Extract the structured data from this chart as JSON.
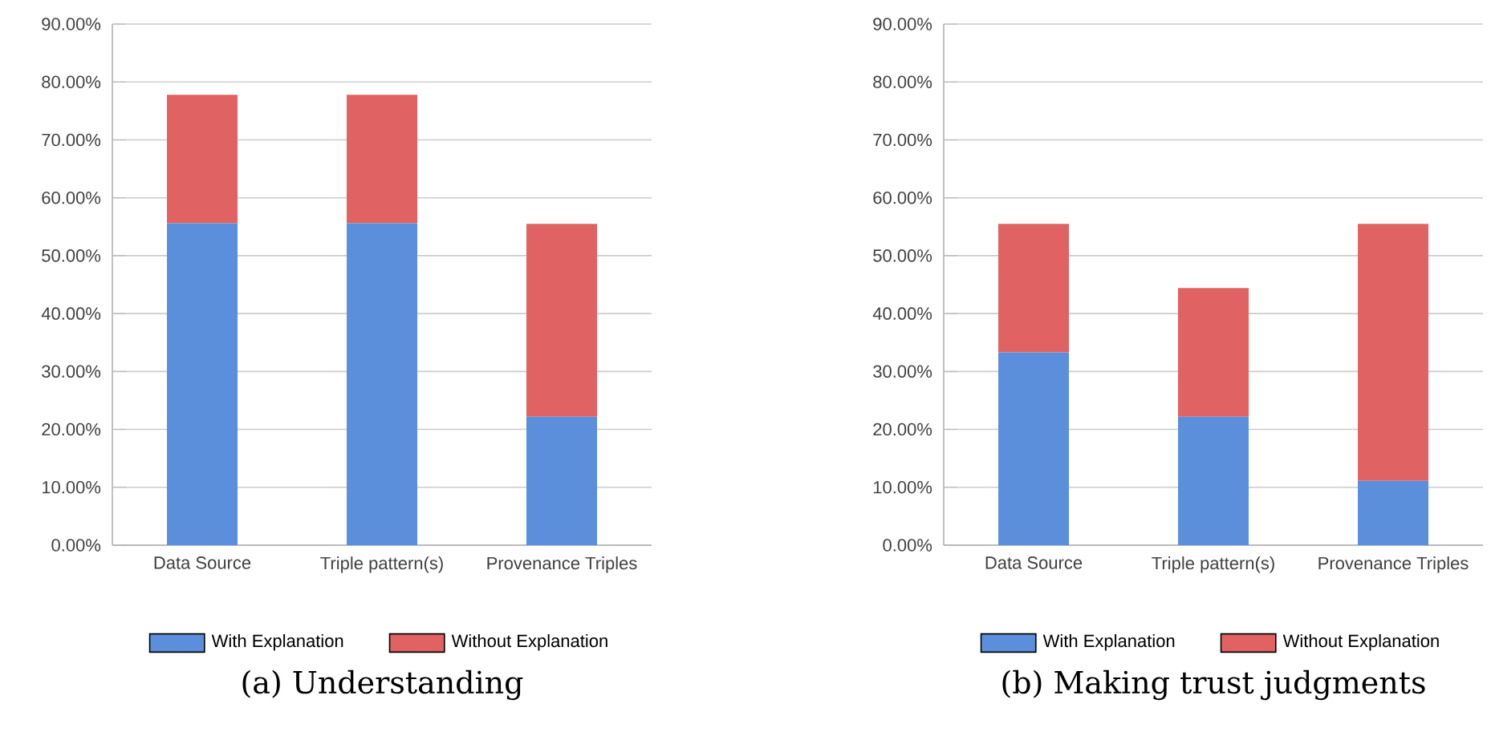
{
  "chart_data": [
    {
      "type": "bar",
      "stacked": true,
      "title": "(a) Understanding",
      "categories": [
        "Data Source",
        "Triple pattern(s)",
        "Provenance Triples"
      ],
      "series": [
        {
          "name": "With Explanation",
          "color": "#5b8fdc",
          "values": [
            55.6,
            55.6,
            22.2
          ]
        },
        {
          "name": "Without Explanation",
          "color": "#e06262",
          "values": [
            22.2,
            22.2,
            33.3
          ]
        }
      ],
      "ylim": [
        0,
        90
      ],
      "yticks": [
        {
          "value": 0,
          "label": "0.00%"
        },
        {
          "value": 10,
          "label": "10.00%"
        },
        {
          "value": 20,
          "label": "20.00%"
        },
        {
          "value": 30,
          "label": "30.00%"
        },
        {
          "value": 40,
          "label": "40.00%"
        },
        {
          "value": 50,
          "label": "50.00%"
        },
        {
          "value": 60,
          "label": "60.00%"
        },
        {
          "value": 70,
          "label": "70.00%"
        },
        {
          "value": 80,
          "label": "80.00%"
        },
        {
          "value": 90,
          "label": "90.00%"
        }
      ],
      "grid": "y",
      "legend": "bottom"
    },
    {
      "type": "bar",
      "stacked": true,
      "title": "(b) Making trust judgments",
      "categories": [
        "Data Source",
        "Triple pattern(s)",
        "Provenance Triples"
      ],
      "series": [
        {
          "name": "With Explanation",
          "color": "#5b8fdc",
          "values": [
            33.3,
            22.2,
            11.1
          ]
        },
        {
          "name": "Without Explanation",
          "color": "#e06262",
          "values": [
            22.2,
            22.2,
            44.4
          ]
        }
      ],
      "ylim": [
        0,
        90
      ],
      "yticks": [
        {
          "value": 0,
          "label": "0.00%"
        },
        {
          "value": 10,
          "label": "10.00%"
        },
        {
          "value": 20,
          "label": "20.00%"
        },
        {
          "value": 30,
          "label": "30.00%"
        },
        {
          "value": 40,
          "label": "40.00%"
        },
        {
          "value": 50,
          "label": "50.00%"
        },
        {
          "value": 60,
          "label": "60.00%"
        },
        {
          "value": 70,
          "label": "70.00%"
        },
        {
          "value": 80,
          "label": "80.00%"
        },
        {
          "value": 90,
          "label": "90.00%"
        }
      ],
      "grid": "y",
      "legend": "bottom"
    }
  ]
}
